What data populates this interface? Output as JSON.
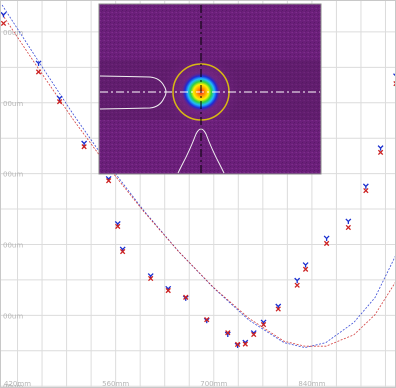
{
  "chart_data": {
    "type": "scatter",
    "title": "",
    "xlabel": "",
    "ylabel": "",
    "grid": true,
    "xlim": [
      395,
      960
    ],
    "ylim": [
      195,
      1290
    ],
    "x_ticks": [
      {
        "value": 420,
        "label": "420mm"
      },
      {
        "value": 560,
        "label": "560mm"
      },
      {
        "value": 700,
        "label": "700mm"
      },
      {
        "value": 840,
        "label": "840mm"
      },
      {
        "value": 980,
        "label": "980mm"
      }
    ],
    "y_ticks": [
      {
        "value": 1200,
        "label": "00um"
      },
      {
        "value": 1000,
        "label": "00um"
      },
      {
        "value": 800,
        "label": "00um"
      },
      {
        "value": 600,
        "label": "00um"
      },
      {
        "value": 400,
        "label": "00um"
      },
      {
        "value": 200,
        "label": "00um"
      }
    ],
    "series": [
      {
        "name": "",
        "color": "#1a2fd0",
        "marker": "Y",
        "points": [
          [
            400,
            1248
          ],
          [
            450,
            1111
          ],
          [
            480,
            1012
          ],
          [
            515,
            885
          ],
          [
            550,
            785
          ],
          [
            563,
            658
          ],
          [
            570,
            586
          ],
          [
            610,
            511
          ],
          [
            635,
            475
          ],
          [
            660,
            448
          ],
          [
            690,
            385
          ],
          [
            720,
            346
          ],
          [
            734,
            315
          ],
          [
            745,
            323
          ],
          [
            757,
            350
          ],
          [
            771,
            380
          ],
          [
            792,
            425
          ],
          [
            819,
            498
          ],
          [
            831,
            542
          ],
          [
            861,
            617
          ],
          [
            892,
            665
          ],
          [
            917,
            764
          ],
          [
            938,
            872
          ],
          [
            960,
            1075
          ]
        ],
        "fit": [
          [
            398,
            1276
          ],
          [
            450,
            1117
          ],
          [
            500,
            966
          ],
          [
            550,
            825
          ],
          [
            600,
            696
          ],
          [
            650,
            580
          ],
          [
            700,
            477
          ],
          [
            750,
            387
          ],
          [
            800,
            323
          ],
          [
            830,
            309
          ],
          [
            860,
            323
          ],
          [
            900,
            380
          ],
          [
            930,
            450
          ],
          [
            960,
            571
          ],
          [
            990,
            720
          ],
          [
            1000,
            775
          ]
        ]
      },
      {
        "name": "",
        "color": "#cc2222",
        "marker": "x",
        "points": [
          [
            400,
            1224
          ],
          [
            450,
            1087
          ],
          [
            480,
            1003
          ],
          [
            515,
            876
          ],
          [
            550,
            780
          ],
          [
            563,
            651
          ],
          [
            570,
            580
          ],
          [
            610,
            504
          ],
          [
            635,
            470
          ],
          [
            660,
            451
          ],
          [
            690,
            388
          ],
          [
            720,
            351
          ],
          [
            734,
            318
          ],
          [
            745,
            319
          ],
          [
            757,
            346
          ],
          [
            771,
            374
          ],
          [
            792,
            418
          ],
          [
            819,
            485
          ],
          [
            831,
            530
          ],
          [
            861,
            603
          ],
          [
            892,
            648
          ],
          [
            917,
            752
          ],
          [
            938,
            860
          ],
          [
            960,
            1054
          ]
        ],
        "fit": [
          [
            398,
            1250
          ],
          [
            450,
            1096
          ],
          [
            500,
            951
          ],
          [
            550,
            817
          ],
          [
            600,
            693
          ],
          [
            650,
            580
          ],
          [
            700,
            478
          ],
          [
            750,
            392
          ],
          [
            800,
            327
          ],
          [
            830,
            313
          ],
          [
            860,
            313
          ],
          [
            900,
            345
          ],
          [
            930,
            402
          ],
          [
            960,
            496
          ],
          [
            990,
            612
          ],
          [
            1000,
            650
          ]
        ]
      }
    ],
    "inset": {
      "type": "beam-profile-image",
      "background": "#6b1f7a",
      "crosshair_color": "#ffffff",
      "ring_color": "#d8b814"
    }
  }
}
